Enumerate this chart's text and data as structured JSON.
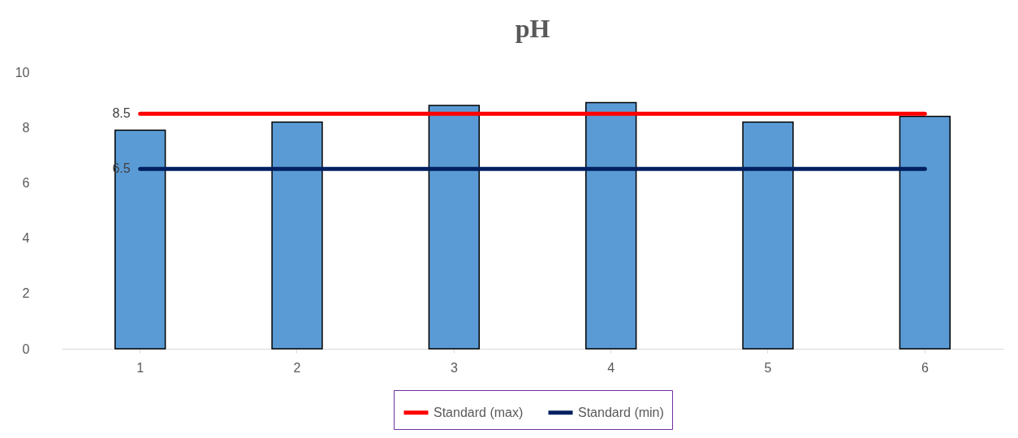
{
  "chart_data": {
    "type": "bar",
    "title": "pH",
    "categories": [
      "1",
      "2",
      "3",
      "4",
      "5",
      "6"
    ],
    "series": [
      {
        "color": "#5b9bd5",
        "values": [
          7.9,
          8.2,
          8.8,
          8.9,
          8.2,
          8.4
        ]
      },
      {
        "type": "line",
        "name": "Standard (max)",
        "color": "#ff0000",
        "values": [
          8.5,
          8.5,
          8.5,
          8.5,
          8.5,
          8.5
        ],
        "value_labels": [
          "8.5",
          null,
          null,
          null,
          null,
          null
        ]
      },
      {
        "type": "line",
        "name": "Standard (min)",
        "color": "#002060",
        "values": [
          6.5,
          6.5,
          6.5,
          6.5,
          6.5,
          6.5
        ],
        "value_labels": [
          "6.5",
          null,
          null,
          null,
          null,
          null
        ]
      }
    ],
    "ylim": [
      0,
      10
    ],
    "yticks": [
      0,
      2,
      4,
      6,
      8,
      10
    ],
    "grid": false,
    "legend": "bottom"
  }
}
